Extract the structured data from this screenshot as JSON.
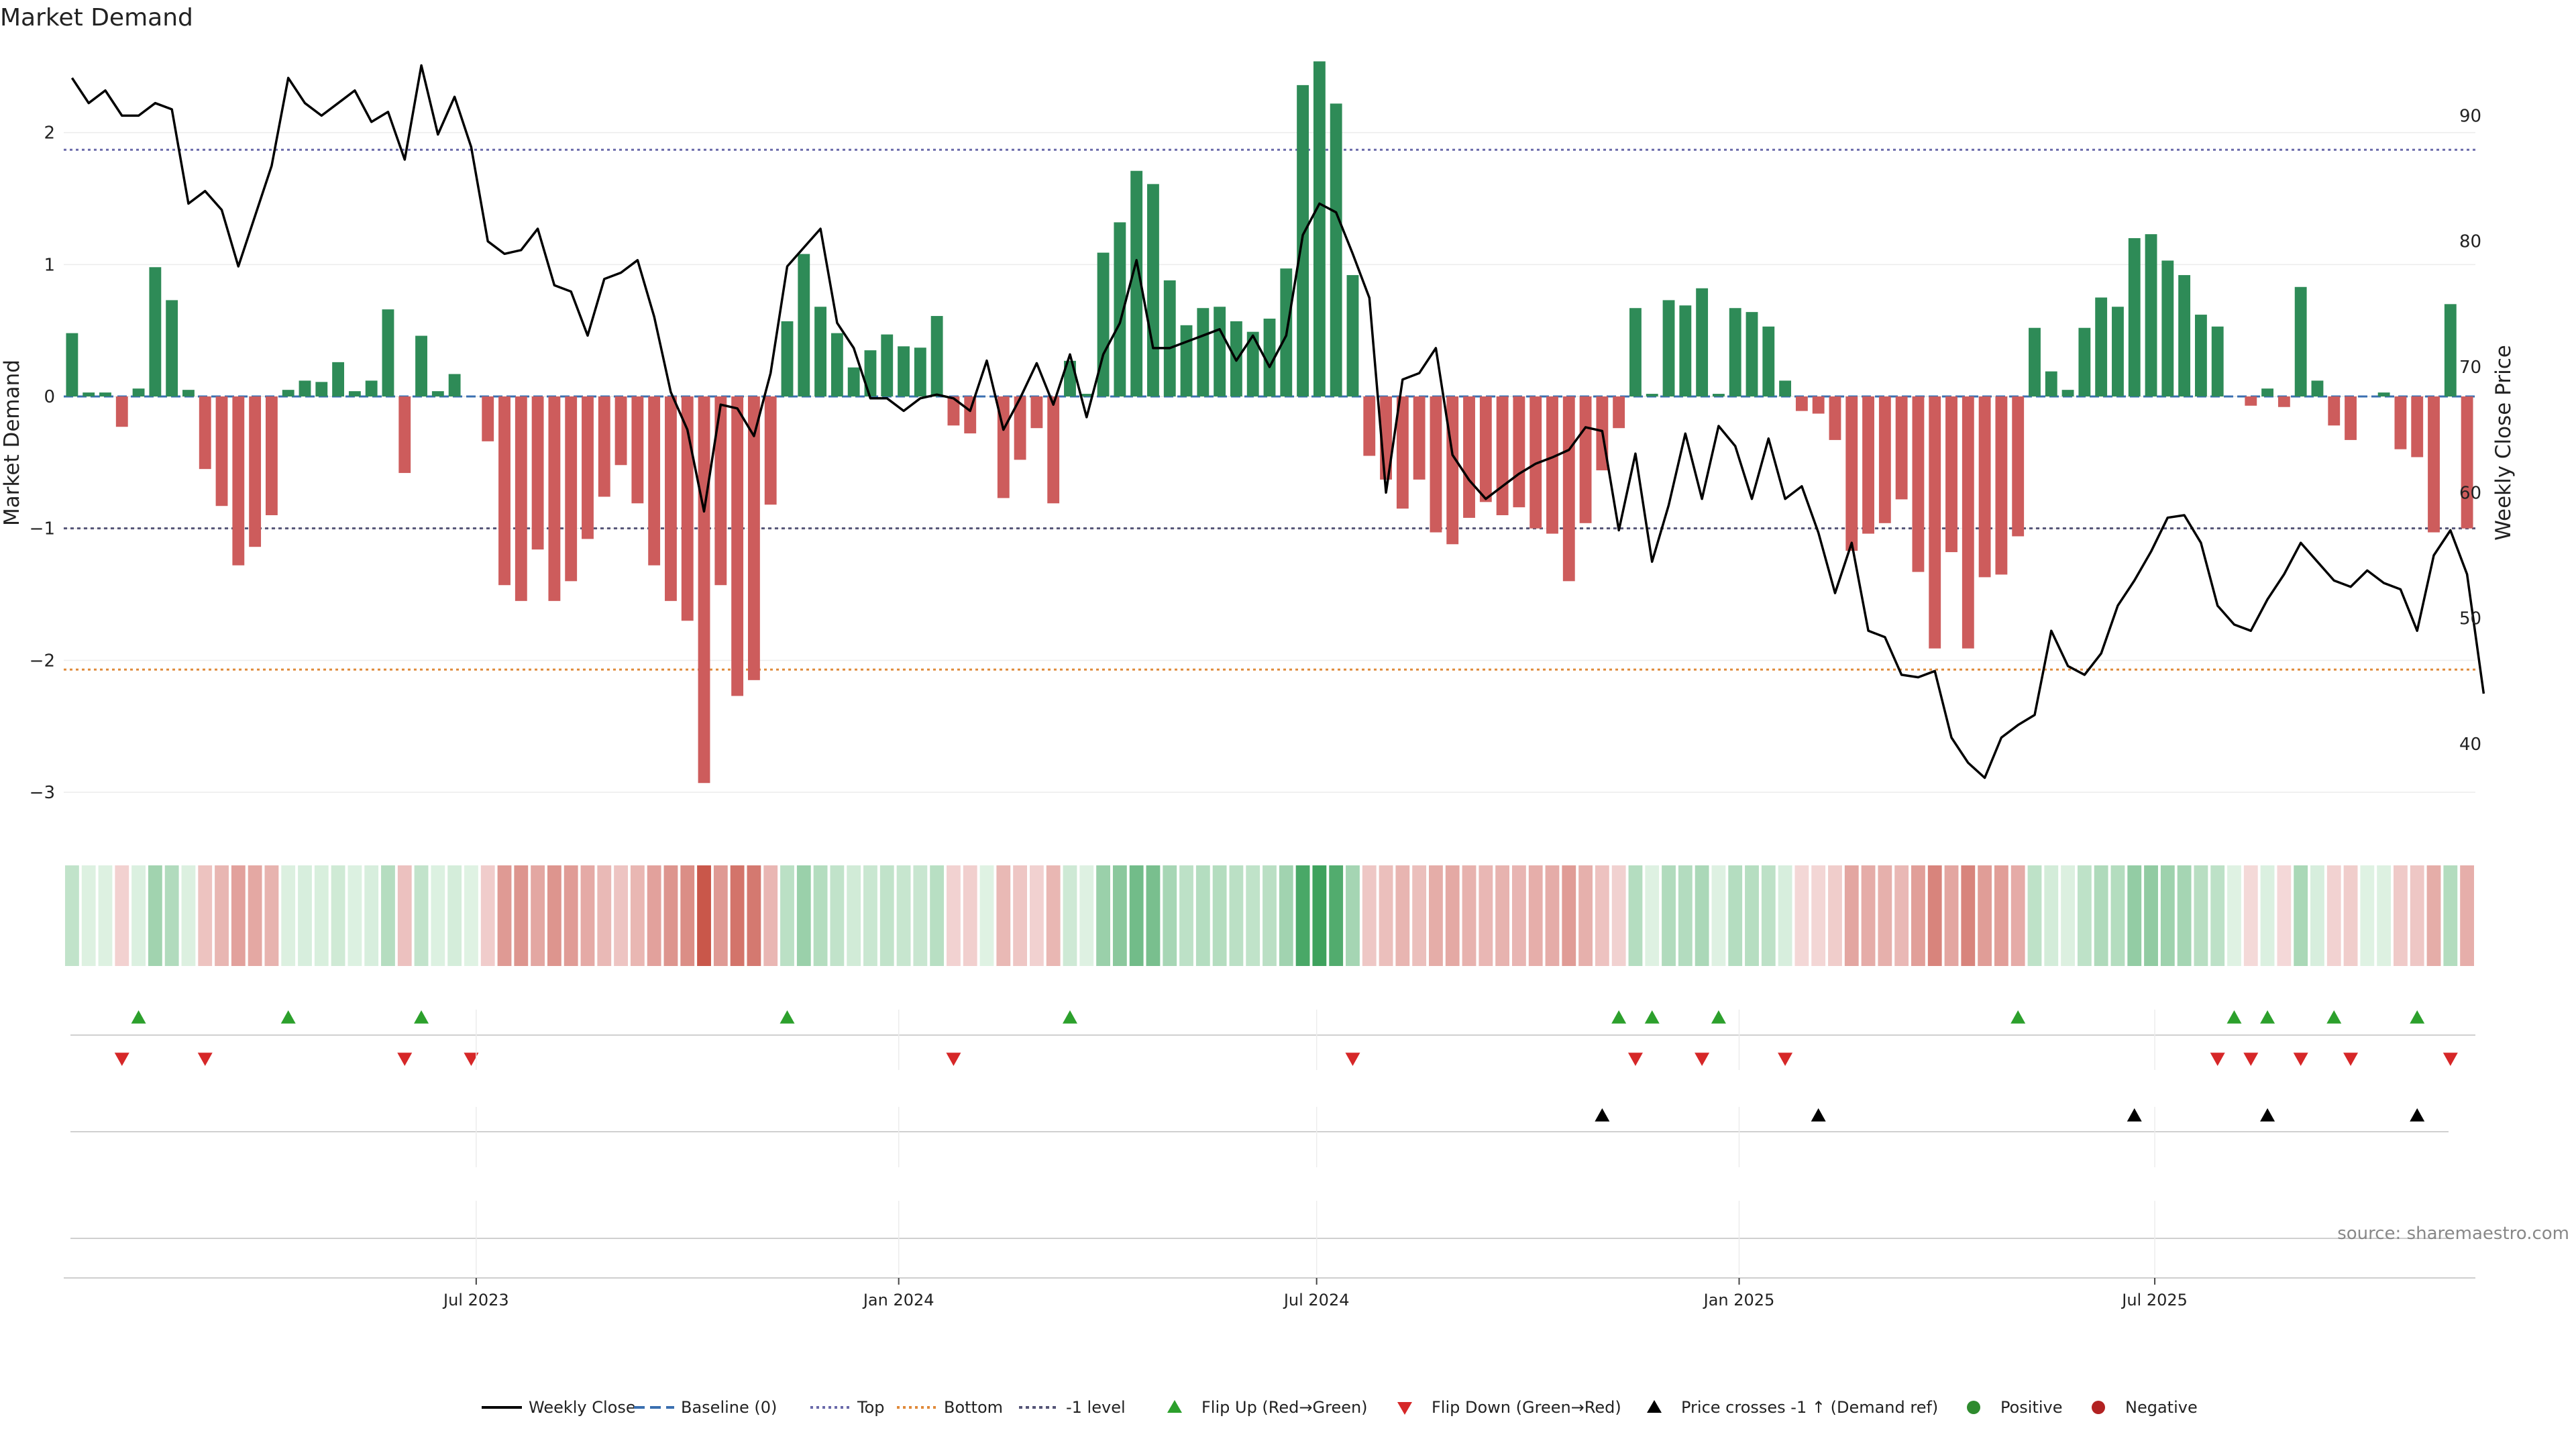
{
  "chart_data": {
    "type": "bar",
    "title": "Market Demand",
    "ylabel": "Market Demand",
    "y2label": "Weekly Close Price",
    "ylim": [
      -3.3,
      2.7
    ],
    "y2lim": [
      33,
      96
    ],
    "yticks": [
      2,
      1,
      0,
      -1,
      -2,
      -3
    ],
    "ytick_labels": [
      "2",
      "1",
      "0",
      "−1",
      "−2",
      "−3"
    ],
    "y2ticks": [
      90,
      80,
      70,
      60,
      50,
      40
    ],
    "y2tick_labels": [
      "90",
      "80",
      "70",
      "60",
      "50",
      "40"
    ],
    "reference_lines": {
      "top": 1.87,
      "bottom": -2.07,
      "minus_one": -1.0,
      "baseline": 0
    },
    "x_start": "2023-01-06",
    "x_end": "2025-11-14",
    "xtick_labels": [
      "Jul 2023",
      "Jan 2024",
      "Jul 2024",
      "Jan 2025",
      "Jul 2025"
    ],
    "xtick_dates": [
      "2023-07-01",
      "2024-01-01",
      "2024-07-01",
      "2025-01-01",
      "2025-07-01"
    ],
    "demand": [
      0.48,
      0.03,
      0.03,
      -0.23,
      0.06,
      0.98,
      0.73,
      0.05,
      -0.55,
      -0.83,
      -1.28,
      -1.14,
      -0.9,
      0.05,
      0.12,
      0.11,
      0.26,
      0.04,
      0.12,
      0.66,
      -0.58,
      0.46,
      0.04,
      0.17,
      0,
      -0.34,
      -1.43,
      -1.55,
      -1.16,
      -1.55,
      -1.4,
      -1.08,
      -0.76,
      -0.52,
      -0.81,
      -1.28,
      -1.55,
      -1.7,
      -2.93,
      -1.43,
      -2.27,
      -2.15,
      -0.82,
      0.57,
      1.08,
      0.68,
      0.48,
      0.22,
      0.35,
      0.47,
      0.38,
      0.37,
      0.61,
      -0.22,
      -0.28,
      0,
      -0.77,
      -0.48,
      -0.24,
      -0.81,
      0.27,
      0.02,
      1.09,
      1.32,
      1.71,
      1.61,
      0.88,
      0.54,
      0.67,
      0.68,
      0.57,
      0.49,
      0.59,
      0.97,
      2.36,
      2.54,
      2.22,
      0.92,
      -0.45,
      -0.63,
      -0.85,
      -0.63,
      -1.03,
      -1.12,
      -0.92,
      -0.8,
      -0.9,
      -0.84,
      -1.0,
      -1.04,
      -1.4,
      -0.96,
      -0.56,
      -0.24,
      0.67,
      0.02,
      0.73,
      0.69,
      0.82,
      0.02,
      0.67,
      0.64,
      0.53,
      0.12,
      -0.11,
      -0.13,
      -0.33,
      -1.17,
      -1.04,
      -0.96,
      -0.78,
      -1.33,
      -1.91,
      -1.18,
      -1.91,
      -1.37,
      -1.35,
      -1.06,
      0.52,
      0.19,
      0.05,
      0.52,
      0.75,
      0.68,
      1.2,
      1.23,
      1.03,
      0.92,
      0.62,
      0.53,
      0,
      -0.07,
      0.06,
      -0.08,
      0.83,
      0.12,
      -0.22,
      -0.33,
      0,
      0.03,
      -0.4,
      -0.46,
      -1.03,
      0.7,
      -1.0
    ],
    "price": [
      93,
      91,
      92,
      90,
      90,
      91,
      90.5,
      83,
      84,
      82.5,
      78,
      82,
      86,
      93,
      91,
      90,
      91,
      92,
      89.5,
      90.3,
      86.5,
      94,
      88.5,
      91.5,
      87.5,
      80,
      79,
      79.3,
      81,
      76.5,
      76,
      72.5,
      77,
      77.5,
      78.5,
      74,
      68,
      65,
      58.5,
      67,
      66.7,
      64.5,
      69.5,
      78,
      79.5,
      81,
      73.5,
      71.5,
      67.5,
      67.5,
      66.5,
      67.5,
      67.8,
      67.5,
      66.5,
      70.5,
      65,
      67.5,
      70.3,
      67,
      71,
      66,
      71,
      73.5,
      78.5,
      71.5,
      71.5,
      72,
      72.5,
      73,
      70.5,
      72.5,
      70,
      72.5,
      80.5,
      83,
      82.3,
      79,
      75.5,
      60,
      69,
      69.5,
      71.5,
      63,
      61,
      59.5,
      60.5,
      61.5,
      62.3,
      62.8,
      63.4,
      65.2,
      64.9,
      57,
      63.1,
      54.5,
      59,
      64.7,
      59.5,
      65.3,
      63.7,
      59.5,
      64.3,
      59.5,
      60.5,
      56.8,
      52,
      56,
      49,
      48.5,
      45.5,
      45.3,
      45.8,
      40.5,
      38.5,
      37.3,
      40.5,
      41.5,
      42.3,
      49,
      46.2,
      45.5,
      47.2,
      51,
      53,
      55.3,
      58,
      58.2,
      56,
      51,
      49.5,
      49,
      51.5,
      53.5,
      56,
      54.5,
      53,
      52.5,
      53.8,
      52.8,
      52.3,
      49,
      55,
      57,
      53.5,
      44
    ]
  },
  "labels": {
    "title": "Market Demand",
    "ylabel": "Market Demand",
    "y2label": "Weekly Close Price",
    "source": "source: sharemaestro.com"
  },
  "markers": {
    "flip_up_bars": [
      4,
      13,
      21,
      43,
      60,
      93,
      95,
      99,
      117,
      130,
      132,
      136,
      141
    ],
    "flip_down_bars": [
      3,
      8,
      20,
      24,
      53,
      77,
      94,
      98,
      103,
      129,
      131,
      134,
      137,
      143
    ],
    "price_cross_bars": [
      92,
      105,
      124,
      132,
      141
    ]
  },
  "colors": {
    "positive_bar": "#2e8b57",
    "negative_bar": "#cd5c5c",
    "price_line": "#000000",
    "baseline": "#3a6fb0",
    "top": "#6a6aaa",
    "bottom": "#e08a3a",
    "minus_one": "#555577",
    "flip_up": "#2ca02c",
    "flip_down": "#d62728",
    "cross": "#000000",
    "positive_dot": "#2e8b2e",
    "negative_dot": "#b22222"
  },
  "legend": {
    "items": [
      {
        "key": "weekly_close",
        "label": "Weekly Close"
      },
      {
        "key": "baseline",
        "label": "Baseline (0)"
      },
      {
        "key": "top",
        "label": "Top"
      },
      {
        "key": "bottom",
        "label": "Bottom"
      },
      {
        "key": "minus_one",
        "label": "-1 level"
      },
      {
        "key": "flip_up",
        "label": "Flip Up (Red→Green)"
      },
      {
        "key": "flip_down",
        "label": "Flip Down (Green→Red)"
      },
      {
        "key": "cross",
        "label": "Price crosses -1 ↑ (Demand ref)"
      },
      {
        "key": "positive",
        "label": "Positive"
      },
      {
        "key": "negative",
        "label": "Negative"
      }
    ]
  }
}
